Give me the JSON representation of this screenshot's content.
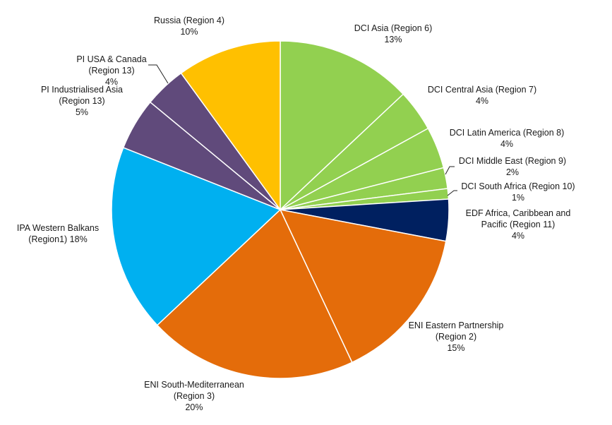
{
  "chart_data": {
    "type": "pie",
    "title": "",
    "start": "12 o'clock",
    "direction": "clockwise",
    "legend": "none (labels placed beside slices)",
    "slices": [
      {
        "label": [
          "DCI Asia (Region 6)",
          "13%"
        ],
        "value": 13,
        "color": "#92d050"
      },
      {
        "label": [
          "DCI Central Asia (Region 7)",
          "4%"
        ],
        "value": 4,
        "color": "#92d050"
      },
      {
        "label": [
          "DCI Latin America (Region 8)",
          "4%"
        ],
        "value": 4,
        "color": "#92d050"
      },
      {
        "label": [
          "DCI Middle East (Region 9)",
          "2%"
        ],
        "value": 2,
        "color": "#92d050"
      },
      {
        "label": [
          "DCI South Africa (Region 10)",
          "1%"
        ],
        "value": 1,
        "color": "#92d050"
      },
      {
        "label": [
          "EDF Africa, Caribbean and",
          "Pacific (Region 11)",
          "4%"
        ],
        "value": 4,
        "color": "#002060"
      },
      {
        "label": [
          "ENI Eastern Partnership",
          "(Region 2)",
          "15%"
        ],
        "value": 15,
        "color": "#e46c0a"
      },
      {
        "label": [
          "ENI South-Mediterranean",
          "(Region 3)",
          "20%"
        ],
        "value": 20,
        "color": "#e46c0a"
      },
      {
        "label": [
          "IPA Western Balkans",
          "(Region1) 18%"
        ],
        "value": 18,
        "color": "#00b0f0"
      },
      {
        "label": [
          "PI Industrialised Asia",
          "(Region 13)",
          "5%"
        ],
        "value": 5,
        "color": "#604a7b"
      },
      {
        "label": [
          "PI USA & Canada",
          "(Region 13)",
          "4%"
        ],
        "value": 4,
        "color": "#604a7b"
      },
      {
        "label": [
          "Russia (Region 4)",
          "10%"
        ],
        "value": 10,
        "color": "#ffc000"
      }
    ]
  }
}
